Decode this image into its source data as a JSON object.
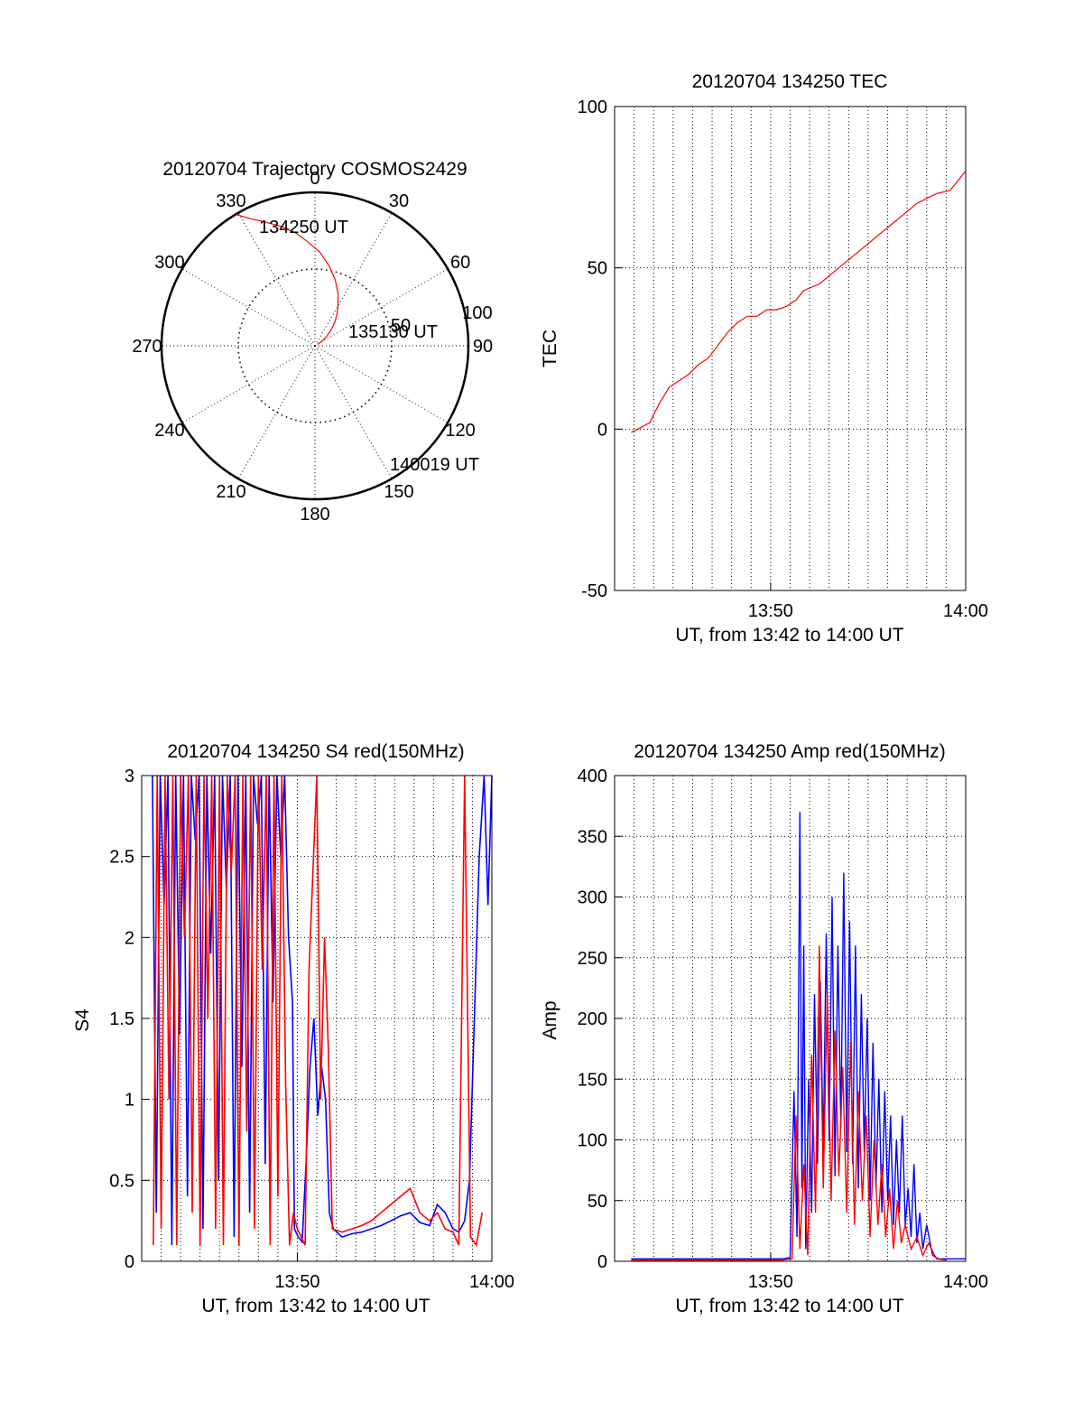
{
  "colors": {
    "red": "#ff0000",
    "blue": "#0000ff",
    "axis": "#000000"
  },
  "chart_data": [
    {
      "id": "polar",
      "type": "scatter",
      "projection": "polar",
      "title": "20120704 Trajectory COSMOS2429",
      "angle_labels": [
        "0",
        "30",
        "60",
        "90",
        "120",
        "150",
        "180",
        "210",
        "240",
        "270",
        "300",
        "330"
      ],
      "radial_labels": [
        "50",
        "100"
      ],
      "radial_ticks": [
        50,
        100
      ],
      "radial_range": [
        0,
        100
      ],
      "annotations": [
        "134250 UT",
        "135130 UT",
        "140019 UT"
      ],
      "track": {
        "azimuth_deg": [
          329,
          333,
          338,
          344,
          350,
          356,
          3,
          10,
          17,
          24,
          30,
          35,
          40,
          44,
          47,
          50,
          52.5,
          54.5,
          56.3,
          57.6,
          58.8,
          59.6,
          60.3
        ],
        "distance": [
          99.8,
          93,
          87,
          81,
          75,
          68,
          61,
          53,
          45,
          37,
          30,
          25,
          20,
          16,
          13,
          10.5,
          8.5,
          6.8,
          5.2,
          4.0,
          3.0,
          2.3,
          1.8
        ]
      }
    },
    {
      "id": "tec",
      "type": "line",
      "title": "20120704 134250 TEC",
      "xlabel": "UT, from 13:42 to 14:00 UT",
      "ylabel": "TEC",
      "x_units": "minutes after 13:42",
      "xlim": [
        0,
        18
      ],
      "ylim": [
        -50,
        100
      ],
      "x_ticks": [
        8,
        18
      ],
      "x_tick_labels": [
        "13:50",
        "14:00"
      ],
      "y_ticks": [
        -50,
        0,
        50,
        100
      ],
      "y_tick_labels": [
        "-50",
        "0",
        "50",
        "100"
      ],
      "series": [
        {
          "color": "red",
          "x": [
            0.85,
            1.2,
            1.8,
            2.3,
            2.8,
            3.3,
            3.8,
            4.3,
            4.8,
            5.3,
            5.8,
            6.3,
            6.8,
            7.3,
            7.8,
            8.3,
            8.8,
            9.3,
            9.7,
            10.5,
            11.5,
            12.5,
            13.5,
            14.5,
            15.5,
            16.5,
            17.2,
            17.6,
            18.0
          ],
          "y": [
            -1,
            0,
            2,
            8,
            13,
            15,
            17,
            20,
            22,
            26,
            30,
            33,
            35,
            35,
            37,
            37,
            38,
            40,
            43,
            45,
            50,
            55,
            60,
            65,
            70,
            73,
            74,
            77,
            80
          ]
        }
      ]
    },
    {
      "id": "s4",
      "type": "line",
      "title": "20120704 134250 S4 red(150MHz)",
      "xlabel": "UT, from 13:42 to 14:00 UT",
      "ylabel": "S4",
      "x_units": "minutes after 13:42",
      "xlim": [
        0,
        18
      ],
      "ylim": [
        0,
        3
      ],
      "x_ticks": [
        8,
        18
      ],
      "x_tick_labels": [
        "13:50",
        "14:00"
      ],
      "y_ticks": [
        0,
        0.5,
        1,
        1.5,
        2,
        2.5,
        3
      ],
      "y_tick_labels": [
        "0",
        "0.5",
        "1",
        "1.5",
        "2",
        "2.5",
        "3"
      ],
      "series": [
        {
          "color": "blue",
          "x": [
            0.55,
            0.75,
            0.95,
            1.15,
            1.35,
            1.55,
            1.75,
            1.95,
            2.15,
            2.35,
            2.55,
            2.75,
            2.95,
            3.15,
            3.35,
            3.55,
            3.75,
            3.95,
            4.15,
            4.35,
            4.55,
            4.75,
            4.95,
            5.15,
            5.35,
            5.55,
            5.75,
            5.95,
            6.15,
            6.35,
            6.55,
            6.75,
            6.95,
            7.15,
            7.35,
            7.55,
            7.75,
            7.85,
            8.05,
            8.25,
            8.45,
            8.65,
            8.85,
            9.05,
            9.25,
            9.45,
            9.65,
            9.85,
            10.3,
            10.8,
            11.3,
            11.8,
            12.3,
            12.8,
            13.3,
            13.8,
            14.3,
            14.8,
            15.2,
            15.6,
            16.0,
            16.3,
            16.6,
            16.85,
            17.1,
            17.35,
            17.6,
            17.8,
            18.0
          ],
          "y": [
            3,
            0.3,
            3,
            2.2,
            3,
            0.1,
            3,
            1.4,
            3,
            0.4,
            3,
            2.6,
            3,
            0.2,
            3,
            1.9,
            3,
            0.5,
            3,
            2.3,
            3,
            0.15,
            3,
            1.2,
            3,
            0.3,
            3,
            2.7,
            3,
            0.6,
            3,
            1.6,
            3,
            2.5,
            3,
            2.0,
            1.6,
            0.2,
            0.15,
            0.12,
            0.6,
            1.2,
            1.5,
            0.9,
            1.2,
            1.0,
            0.3,
            0.2,
            0.15,
            0.17,
            0.18,
            0.2,
            0.22,
            0.25,
            0.28,
            0.3,
            0.24,
            0.22,
            0.35,
            0.3,
            0.2,
            0.18,
            0.25,
            0.5,
            1.5,
            2.5,
            3,
            2.2,
            3
          ]
        },
        {
          "color": "red",
          "x": [
            0.6,
            0.8,
            1.0,
            1.2,
            1.4,
            1.6,
            1.8,
            2.0,
            2.2,
            2.4,
            2.6,
            2.8,
            3.0,
            3.2,
            3.4,
            3.6,
            3.8,
            4.0,
            4.2,
            4.4,
            4.6,
            4.8,
            5.0,
            5.2,
            5.4,
            5.6,
            5.8,
            6.0,
            6.2,
            6.4,
            6.6,
            6.8,
            7.0,
            7.2,
            7.4,
            7.6,
            7.8,
            8.0,
            8.2,
            8.4,
            8.6,
            8.8,
            9.0,
            9.2,
            9.4,
            9.6,
            9.8,
            10.3,
            10.8,
            11.3,
            11.8,
            12.3,
            12.8,
            13.3,
            13.8,
            14.3,
            14.8,
            15.2,
            15.6,
            16.0,
            16.3,
            16.6,
            16.9,
            17.2,
            17.5
          ],
          "y": [
            0.1,
            3,
            0.2,
            3,
            1.0,
            3,
            0.1,
            3,
            2.0,
            3,
            0.3,
            3,
            0.1,
            3,
            1.5,
            3,
            0.2,
            3,
            0.1,
            3,
            2.4,
            3,
            0.1,
            3,
            0.8,
            3,
            0.2,
            3,
            1.8,
            3,
            0.1,
            3,
            0.4,
            3,
            1.1,
            0.1,
            0.3,
            0.2,
            0.15,
            0.1,
            1.8,
            2.4,
            3,
            1.0,
            2.0,
            1.3,
            0.2,
            0.18,
            0.2,
            0.22,
            0.25,
            0.3,
            0.35,
            0.4,
            0.45,
            0.3,
            0.25,
            0.3,
            0.2,
            0.18,
            0.1,
            3,
            0.15,
            0.1,
            0.3
          ]
        }
      ]
    },
    {
      "id": "amp",
      "type": "line",
      "title": "20120704 134250 Amp red(150MHz)",
      "xlabel": "UT, from 13:42 to 14:00 UT",
      "ylabel": "Amp",
      "x_units": "minutes after 13:42",
      "xlim": [
        0,
        18
      ],
      "ylim": [
        0,
        400
      ],
      "x_ticks": [
        8,
        18
      ],
      "x_tick_labels": [
        "13:50",
        "14:00"
      ],
      "y_ticks": [
        0,
        50,
        100,
        150,
        200,
        250,
        300,
        350,
        400
      ],
      "y_tick_labels": [
        "0",
        "50",
        "100",
        "150",
        "200",
        "250",
        "300",
        "350",
        "400"
      ],
      "series": [
        {
          "color": "blue",
          "x": [
            0.85,
            2,
            4,
            6,
            8.6,
            9.0,
            9.2,
            9.35,
            9.5,
            9.6,
            9.7,
            9.8,
            9.95,
            10.1,
            10.25,
            10.4,
            10.55,
            10.7,
            10.85,
            11.0,
            11.15,
            11.3,
            11.45,
            11.6,
            11.75,
            11.9,
            12.05,
            12.2,
            12.35,
            12.5,
            12.65,
            12.8,
            12.95,
            13.1,
            13.25,
            13.4,
            13.55,
            13.7,
            13.85,
            14.0,
            14.15,
            14.3,
            14.45,
            14.6,
            14.75,
            14.9,
            15.05,
            15.2,
            15.35,
            15.5,
            15.65,
            15.8,
            16.0,
            16.3,
            16.6,
            17.0,
            17.5,
            18.0
          ],
          "y": [
            2,
            2,
            2,
            2,
            2,
            3,
            140,
            20,
            370,
            60,
            260,
            10,
            150,
            40,
            220,
            80,
            230,
            90,
            270,
            100,
            300,
            70,
            260,
            110,
            320,
            90,
            280,
            80,
            260,
            60,
            220,
            90,
            200,
            50,
            180,
            60,
            150,
            40,
            140,
            50,
            120,
            30,
            100,
            40,
            120,
            30,
            60,
            20,
            80,
            15,
            40,
            10,
            30,
            5,
            2,
            2,
            2,
            2
          ]
        },
        {
          "color": "red",
          "x": [
            0.85,
            4,
            8.6,
            9.1,
            9.3,
            9.5,
            9.7,
            9.9,
            10.1,
            10.3,
            10.5,
            10.7,
            10.9,
            11.1,
            11.3,
            11.5,
            11.7,
            11.9,
            12.1,
            12.3,
            12.5,
            12.7,
            12.9,
            13.1,
            13.3,
            13.5,
            13.7,
            13.9,
            14.1,
            14.3,
            14.5,
            14.7,
            14.9,
            15.2,
            15.5,
            15.8,
            16.1,
            16.5,
            17.0
          ],
          "y": [
            1,
            1,
            1,
            2,
            120,
            10,
            80,
            5,
            170,
            40,
            260,
            60,
            220,
            50,
            190,
            70,
            160,
            40,
            180,
            30,
            140,
            50,
            120,
            20,
            100,
            30,
            80,
            20,
            60,
            10,
            50,
            15,
            30,
            10,
            20,
            5,
            15,
            2,
            1
          ]
        }
      ]
    }
  ]
}
